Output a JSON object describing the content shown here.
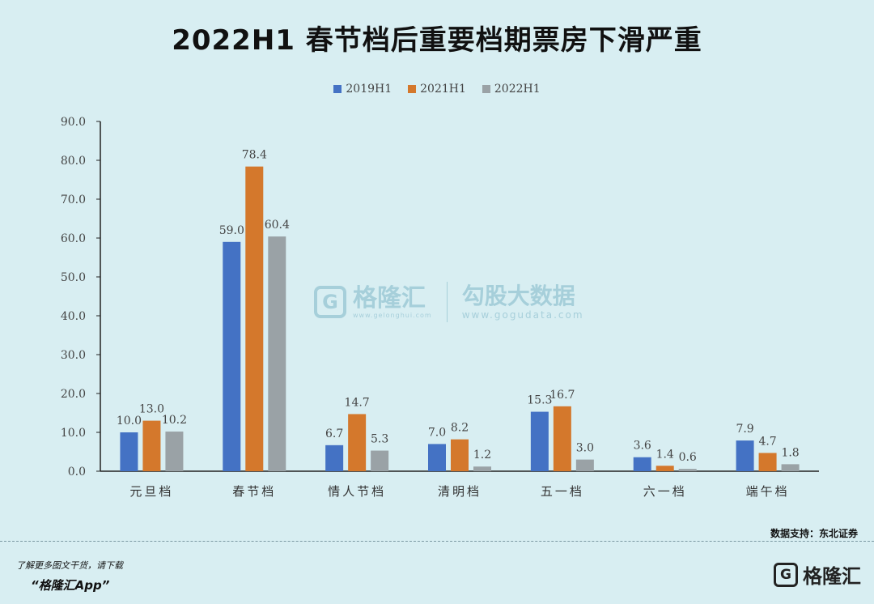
{
  "header": {
    "title": "2022H1 春节档后重要档期票房下滑严重"
  },
  "legend": [
    {
      "label": "2019H1",
      "color": "#4472c4"
    },
    {
      "label": "2021H1",
      "color": "#d4782c"
    },
    {
      "label": "2022H1",
      "color": "#9aa2a6"
    }
  ],
  "chart_data": {
    "type": "bar",
    "title": "2022H1 春节档后重要档期票房下滑严重",
    "xlabel": "",
    "ylabel": "",
    "ylim": [
      0,
      90
    ],
    "yticks": [
      "0.0",
      "10.0",
      "20.0",
      "30.0",
      "40.0",
      "50.0",
      "60.0",
      "70.0",
      "80.0",
      "90.0"
    ],
    "categories": [
      "元旦档",
      "春节档",
      "情人节档",
      "清明档",
      "五一档",
      "六一档",
      "端午档"
    ],
    "series": [
      {
        "name": "2019H1",
        "color": "#4472c4",
        "values": [
          10.0,
          59.0,
          6.7,
          7.0,
          15.3,
          3.6,
          7.9
        ]
      },
      {
        "name": "2021H1",
        "color": "#d4782c",
        "values": [
          13.0,
          78.4,
          14.7,
          8.2,
          16.7,
          1.4,
          4.7
        ]
      },
      {
        "name": "2022H1",
        "color": "#9aa2a6",
        "values": [
          10.2,
          60.4,
          5.3,
          1.2,
          3.0,
          0.6,
          1.8
        ]
      }
    ],
    "grid": false,
    "legend_position": "top"
  },
  "watermark": {
    "logo_letter": "G",
    "name": "格隆汇",
    "site": "www.gelonghui.com",
    "name2": "勾股大数据",
    "site2": "www.gogudata.com"
  },
  "source": "数据支持：东北证券",
  "footer": {
    "note": "了解更多图文干货，请下载",
    "app": "“格隆汇App”",
    "logo_letter": "G",
    "logo_name": "格隆汇"
  }
}
